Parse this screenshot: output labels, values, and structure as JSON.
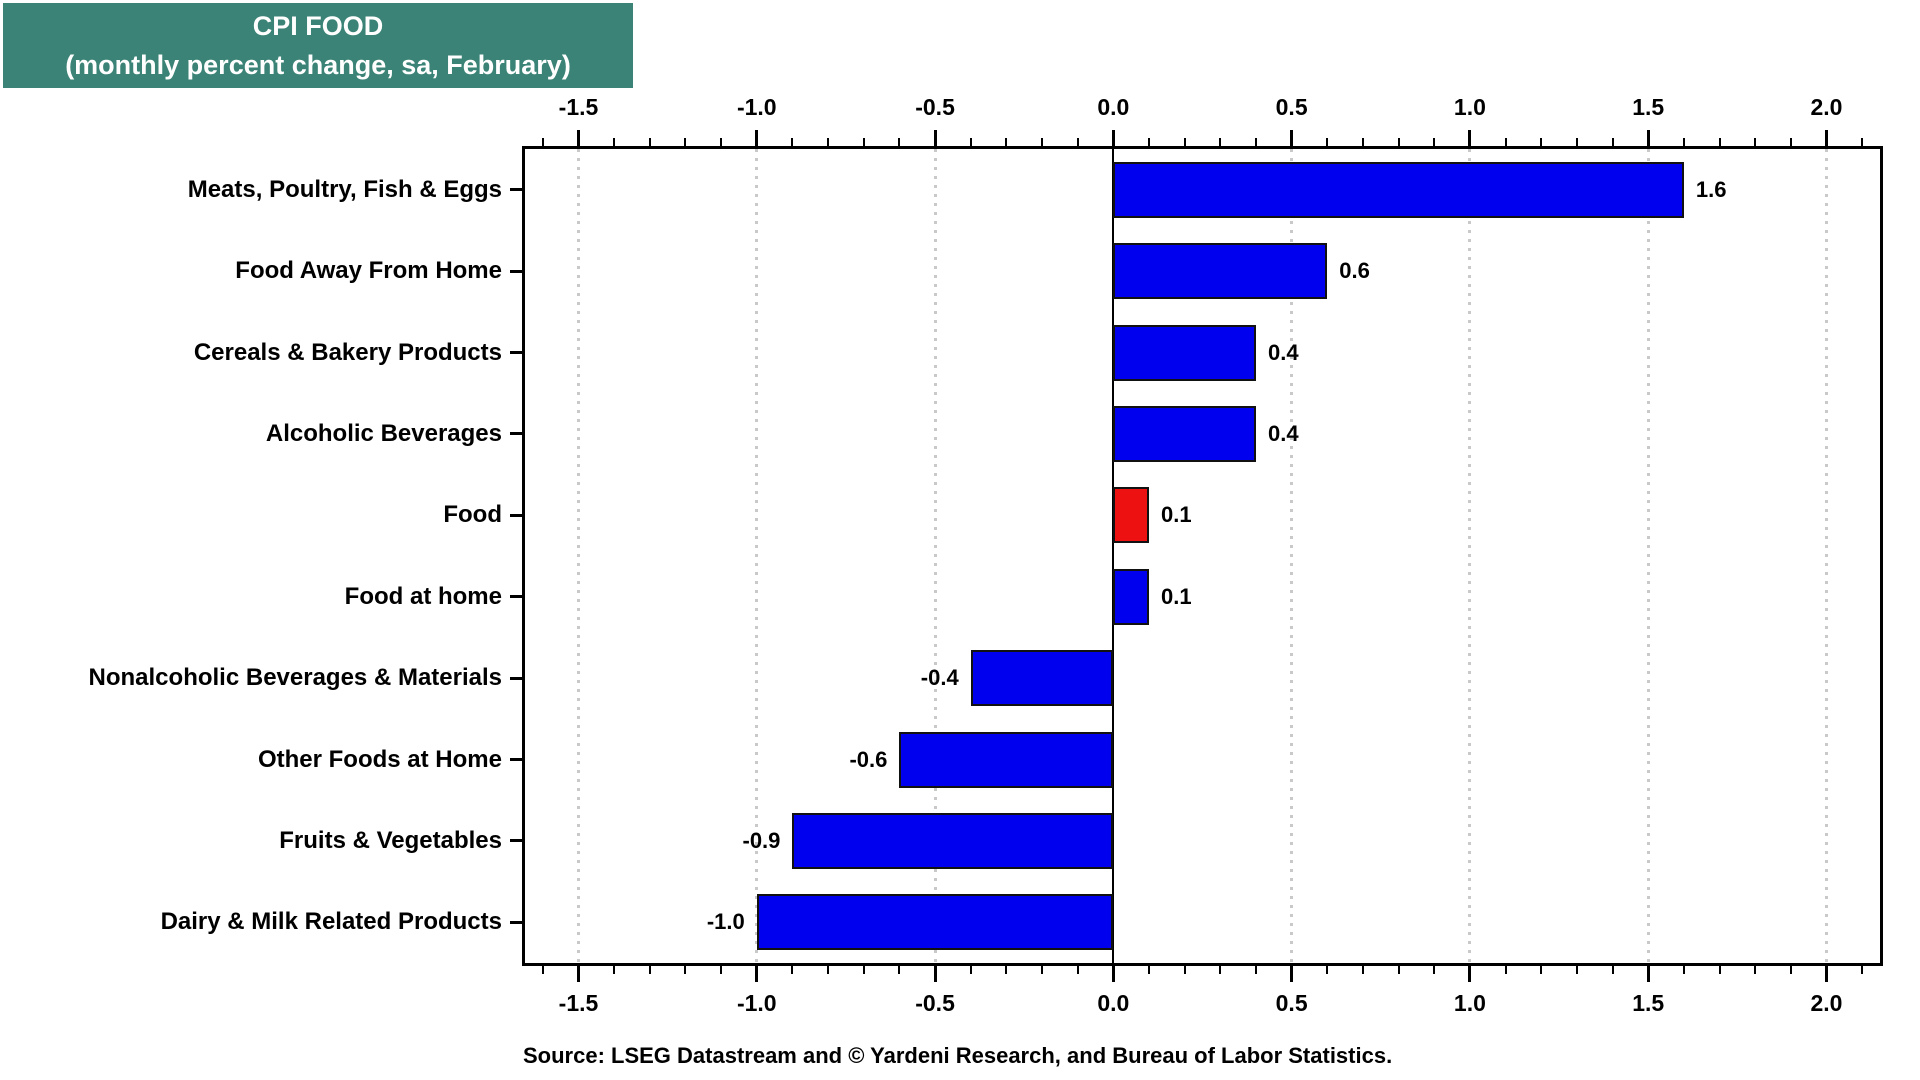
{
  "title": {
    "line1": "CPI FOOD",
    "line2": "(monthly percent change, sa, February)"
  },
  "source_line": "Source: LSEG Datastream and © Yardeni Research, and Bureau of Labor Statistics.",
  "colors": {
    "title_bg": "#3B8376",
    "title_text": "#FFFFFF",
    "bar_blue": "#0000EE",
    "bar_red": "#EE1111",
    "bar_border": "#111111",
    "gridline": "#C9C9C9",
    "axis": "#000000"
  },
  "chart_data": {
    "type": "bar",
    "orientation": "horizontal",
    "title": "CPI FOOD (monthly percent change, sa, February)",
    "categories": [
      "Meats, Poultry, Fish & Eggs",
      "Food Away From Home",
      "Cereals & Bakery Products",
      "Alcoholic Beverages",
      "Food",
      "Food at home",
      "Nonalcoholic Beverages & Materials",
      "Other Foods at Home",
      "Fruits & Vegetables",
      "Dairy & Milk Related Products"
    ],
    "values": [
      1.6,
      0.6,
      0.4,
      0.4,
      0.1,
      0.1,
      -0.4,
      -0.6,
      -0.9,
      -1.0
    ],
    "value_labels": [
      "1.6",
      "0.6",
      "0.4",
      "0.4",
      "0.1",
      "0.1",
      "-0.4",
      "-0.6",
      "-0.9",
      "-1.0"
    ],
    "bar_colors": [
      "#0000EE",
      "#0000EE",
      "#0000EE",
      "#0000EE",
      "#EE1111",
      "#0000EE",
      "#0000EE",
      "#0000EE",
      "#0000EE",
      "#0000EE"
    ],
    "highlighted_category": "Food",
    "xlim": [
      -1.65,
      2.15
    ],
    "x_major_ticks": [
      -1.5,
      -1.0,
      -0.5,
      0.0,
      0.5,
      1.0,
      1.5,
      2.0
    ],
    "x_tick_labels": [
      "-1.5",
      "-1.0",
      "-0.5",
      "0.0",
      "0.5",
      "1.0",
      "1.5",
      "2.0"
    ],
    "x_minor_tick_step": 0.1,
    "grid": "vertical dotted gridlines at 0.5 intervals, solid line at zero",
    "zero_line": true,
    "axis_ticks_position": "top and bottom",
    "legend": "none"
  }
}
